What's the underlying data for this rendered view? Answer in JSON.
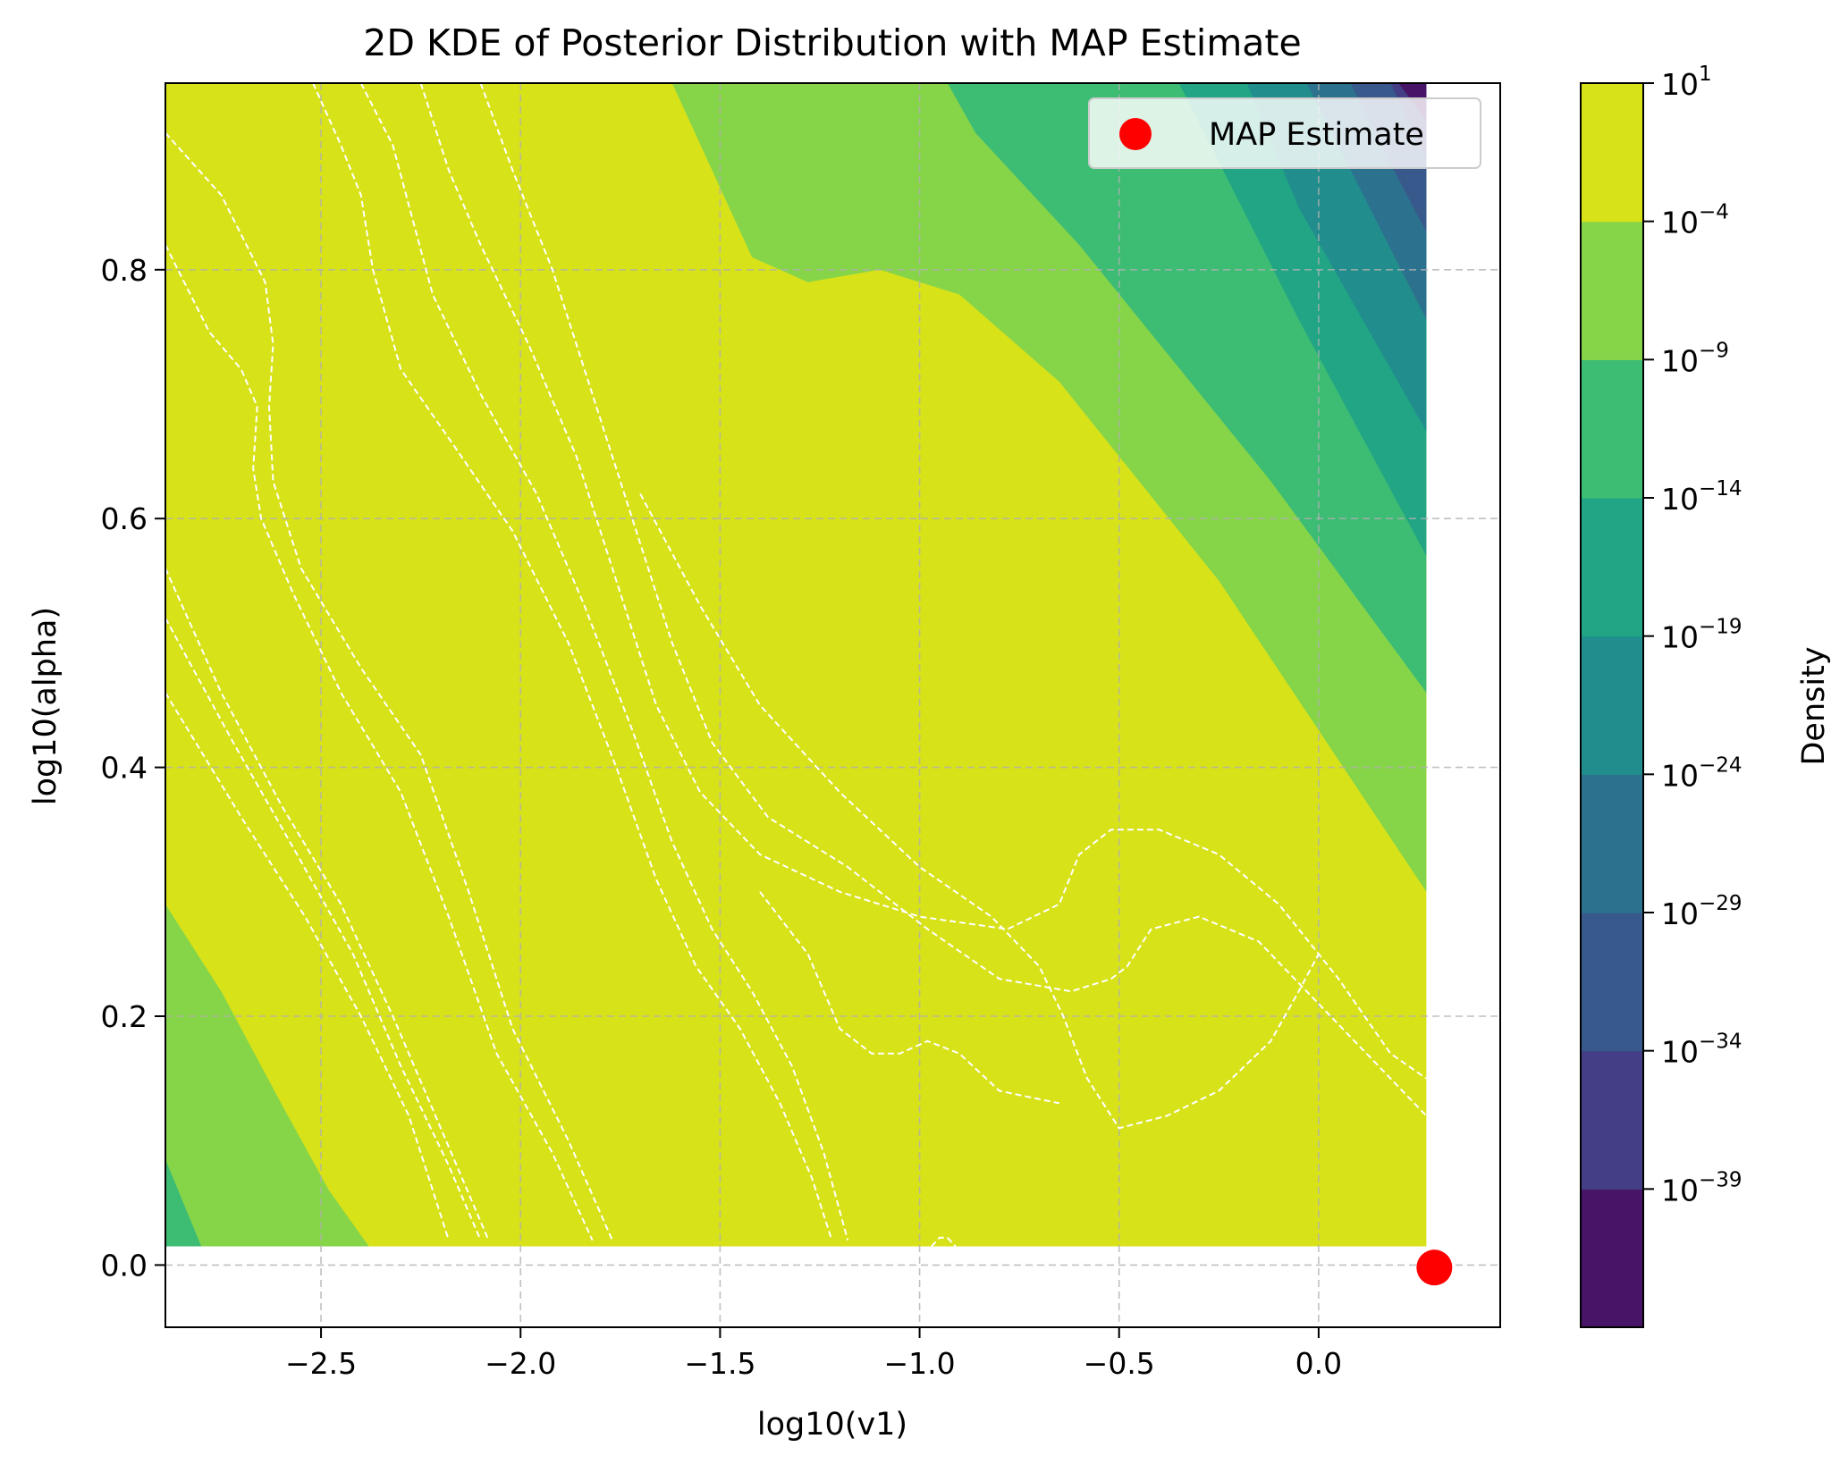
{
  "chart_data": {
    "type": "heatmap",
    "subtype": "filled-contour",
    "title": "2D KDE of Posterior Distribution with MAP Estimate",
    "xlabel": "log10(v1)",
    "ylabel": "log10(alpha)",
    "xlim": [
      -2.89,
      0.455
    ],
    "ylim": [
      -0.05,
      0.95
    ],
    "data_extent": {
      "x": [
        -2.89,
        0.27
      ],
      "y": [
        0.015,
        0.95
      ]
    },
    "xticks": [
      -2.5,
      -2.0,
      -1.5,
      -1.0,
      -0.5,
      0.0
    ],
    "xtick_labels": [
      "−2.5",
      "−2.0",
      "−1.5",
      "−1.0",
      "−0.5",
      "0.0"
    ],
    "yticks": [
      0.0,
      0.2,
      0.4,
      0.6,
      0.8
    ],
    "ytick_labels": [
      "0.0",
      "0.2",
      "0.4",
      "0.6",
      "0.8"
    ],
    "grid": true,
    "scale": "log",
    "levels": [
      {
        "exp": -39,
        "color": "#481467"
      },
      {
        "exp": -34,
        "color": "#433e85"
      },
      {
        "exp": -29,
        "color": "#38598c"
      },
      {
        "exp": -24,
        "color": "#2c728e"
      },
      {
        "exp": -19,
        "color": "#218e8d"
      },
      {
        "exp": -14,
        "color": "#21a585"
      },
      {
        "exp": -9,
        "color": "#3dbc74"
      },
      {
        "exp": -4,
        "color": "#86d549"
      }
    ],
    "level_top_color": "#d8e219",
    "colorbar": {
      "label": "Density",
      "base": "10",
      "tick_exponents": [
        "1",
        "−4",
        "−9",
        "−14",
        "−19",
        "−24",
        "−29",
        "−34",
        "−39"
      ]
    },
    "map_estimate": {
      "x": 0.29,
      "y": -0.002,
      "color": "#ff0000"
    },
    "legend": {
      "position": "top-right",
      "entries": [
        "MAP Estimate"
      ]
    }
  }
}
